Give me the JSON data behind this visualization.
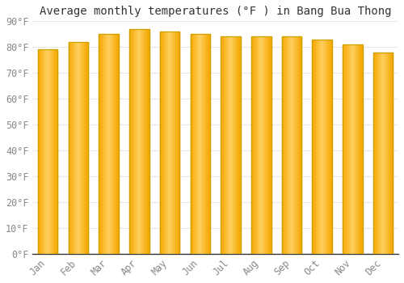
{
  "title": "Average monthly temperatures (°F ) in Bang Bua Thong",
  "months": [
    "Jan",
    "Feb",
    "Mar",
    "Apr",
    "May",
    "Jun",
    "Jul",
    "Aug",
    "Sep",
    "Oct",
    "Nov",
    "Dec"
  ],
  "values": [
    79,
    82,
    85,
    87,
    86,
    85,
    84,
    84,
    84,
    83,
    81,
    78
  ],
  "bar_color_center": "#FFD060",
  "bar_color_edge": "#F5A800",
  "bar_edge_color": "#C8A000",
  "background_color": "#FFFFFF",
  "grid_color": "#E8E8E8",
  "ylim": [
    0,
    90
  ],
  "yticks": [
    0,
    10,
    20,
    30,
    40,
    50,
    60,
    70,
    80,
    90
  ],
  "ytick_labels": [
    "0°F",
    "10°F",
    "20°F",
    "30°F",
    "40°F",
    "50°F",
    "60°F",
    "70°F",
    "80°F",
    "90°F"
  ],
  "title_fontsize": 10,
  "tick_fontsize": 8.5,
  "font_family": "monospace"
}
